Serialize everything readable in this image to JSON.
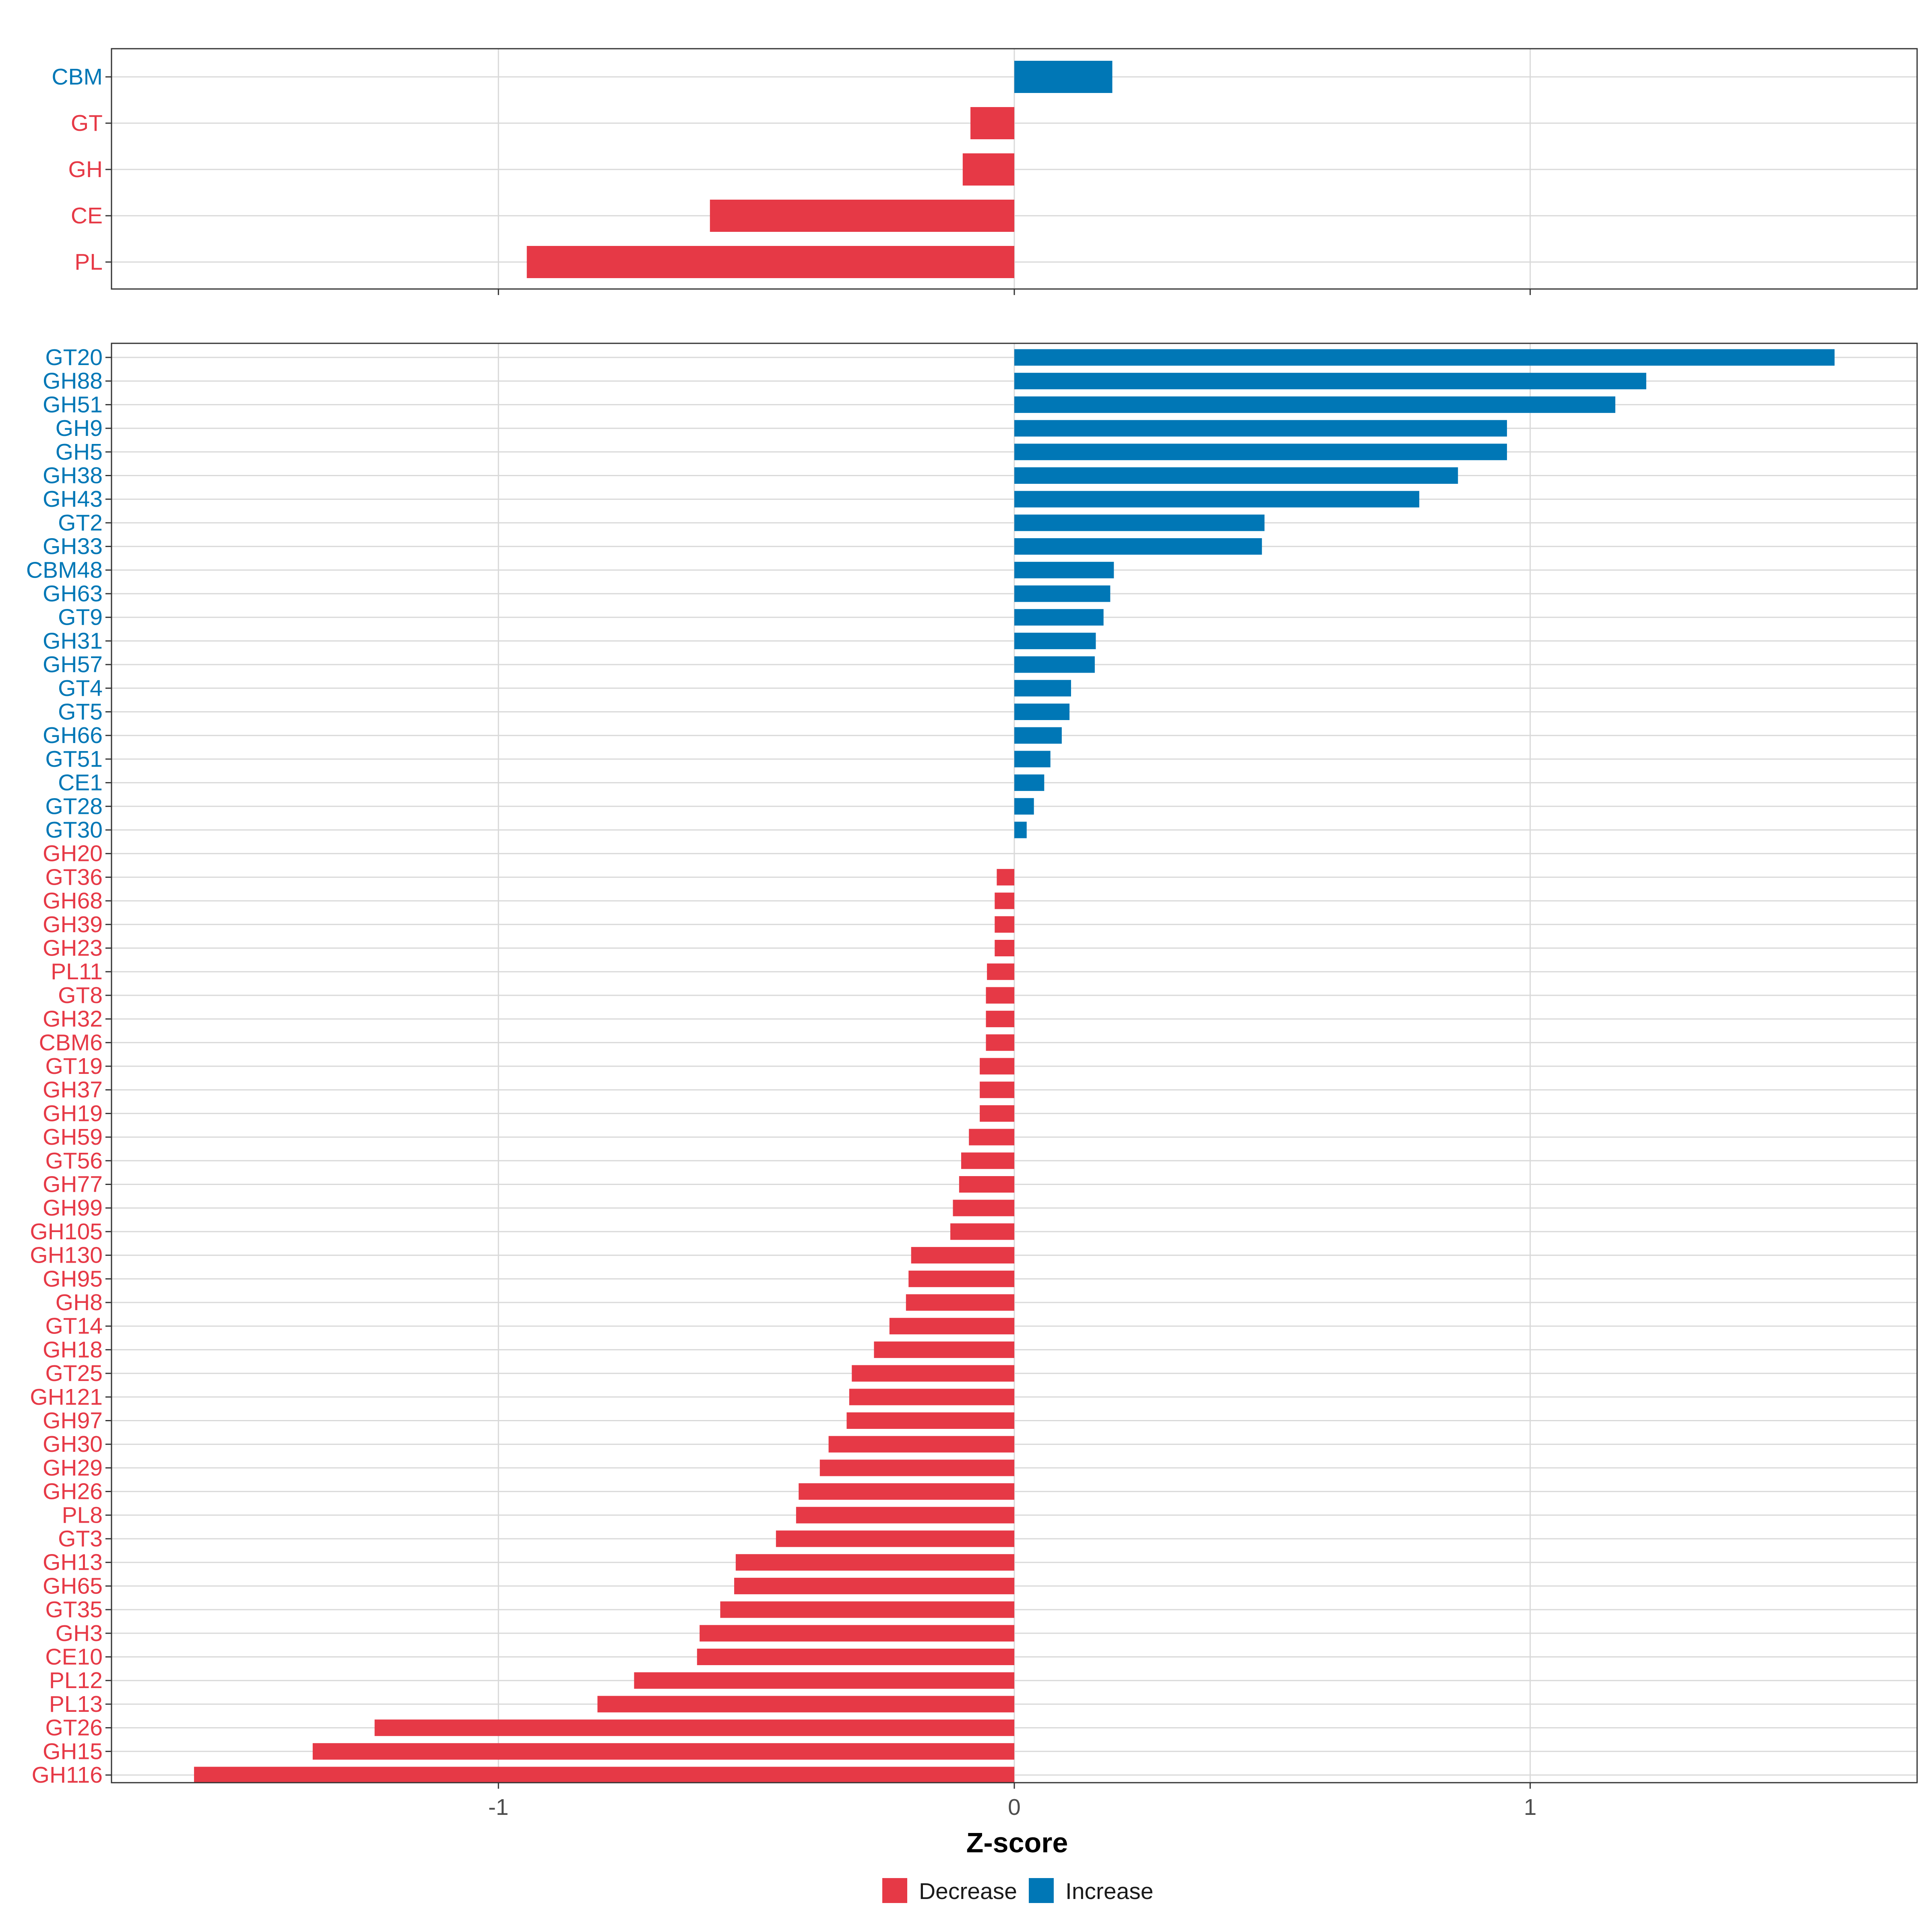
{
  "colors": {
    "decrease": "#E63946",
    "increase": "#0077B6",
    "grid": "#D9D9D9",
    "panel_border": "#333333",
    "axis_text": "#4D4D4D"
  },
  "chart_data": [
    {
      "type": "bar",
      "orientation": "horizontal",
      "panel": "top",
      "xlim": [
        -1.75,
        1.75
      ],
      "xticks": [
        -1,
        0,
        1
      ],
      "categories": [
        "CBM",
        "GT",
        "GH",
        "CE",
        "PL"
      ],
      "values": [
        0.19,
        -0.085,
        -0.1,
        -0.59,
        -0.945
      ]
    },
    {
      "type": "bar",
      "orientation": "horizontal",
      "panel": "bottom",
      "xlim": [
        -1.75,
        1.75
      ],
      "xticks": [
        -1,
        0,
        1
      ],
      "xtick_labels": [
        "-1",
        "0",
        "1"
      ],
      "xlabel": "Z-score",
      "categories": [
        "GT20",
        "GH88",
        "GH51",
        "GH9",
        "GH5",
        "GH38",
        "GH43",
        "GT2",
        "GH33",
        "CBM48",
        "GH63",
        "GT9",
        "GH31",
        "GH57",
        "GT4",
        "GT5",
        "GH66",
        "GT51",
        "CE1",
        "GT28",
        "GT30",
        "GH20",
        "GT36",
        "GH68",
        "GH39",
        "GH23",
        "PL11",
        "GT8",
        "GH32",
        "CBM6",
        "GT19",
        "GH37",
        "GH19",
        "GH59",
        "GT56",
        "GH77",
        "GH99",
        "GH105",
        "GH130",
        "GH95",
        "GH8",
        "GT14",
        "GH18",
        "GT25",
        "GH121",
        "GH97",
        "GH30",
        "GH29",
        "GH26",
        "PL8",
        "GT3",
        "GH13",
        "GH65",
        "GT35",
        "GH3",
        "CE10",
        "PL12",
        "PL13",
        "GT26",
        "GH15",
        "GH116"
      ],
      "values": [
        1.59,
        1.225,
        1.165,
        0.955,
        0.955,
        0.86,
        0.785,
        0.485,
        0.48,
        0.193,
        0.186,
        0.173,
        0.158,
        0.156,
        0.11,
        0.107,
        0.092,
        0.07,
        0.058,
        0.038,
        0.024,
        0.0,
        -0.034,
        -0.038,
        -0.038,
        -0.038,
        -0.053,
        -0.055,
        -0.055,
        -0.055,
        -0.067,
        -0.067,
        -0.067,
        -0.088,
        -0.103,
        -0.107,
        -0.119,
        -0.124,
        -0.2,
        -0.205,
        -0.21,
        -0.242,
        -0.272,
        -0.315,
        -0.32,
        -0.325,
        -0.36,
        -0.377,
        -0.418,
        -0.423,
        -0.462,
        -0.54,
        -0.543,
        -0.57,
        -0.61,
        -0.615,
        -0.737,
        -0.808,
        -1.24,
        -1.36,
        -1.59
      ]
    }
  ],
  "legend": {
    "items": [
      {
        "label": "Decrease",
        "color": "#E63946"
      },
      {
        "label": "Increase",
        "color": "#0077B6"
      }
    ]
  }
}
